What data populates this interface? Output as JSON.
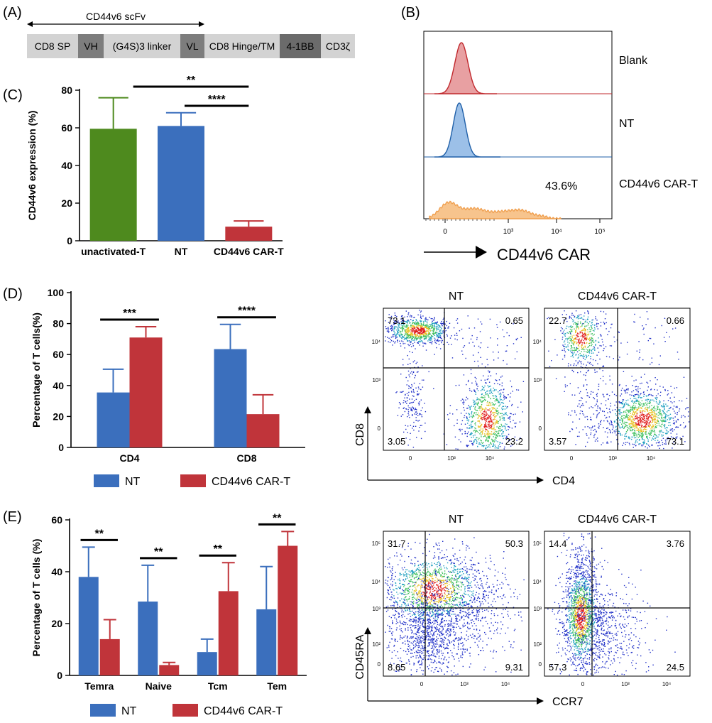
{
  "panels": {
    "A": "(A)",
    "B": "(B)",
    "C": "(C)",
    "D": "(D)",
    "E": "(E)"
  },
  "construct": {
    "scfv_label": "CD44v6 scFv",
    "segments": [
      {
        "label": "CD8 SP",
        "color": "#d3d3d3"
      },
      {
        "label": "VH",
        "color": "#7d7d7d"
      },
      {
        "label": "(G4S)3 linker",
        "color": "#d3d3d3"
      },
      {
        "label": "VL",
        "color": "#7d7d7d"
      },
      {
        "label": "CD8 Hinge/TM",
        "color": "#d3d3d3"
      },
      {
        "label": "4-1BB",
        "color": "#6b6b6b"
      },
      {
        "label": "CD3ζ",
        "color": "#d3d3d3"
      }
    ]
  },
  "histogram": {
    "rows": [
      {
        "label": "Blank",
        "color": "#c0282d",
        "fill": "#e8a0a2",
        "percent": ""
      },
      {
        "label": "NT",
        "color": "#1f5fa8",
        "fill": "#9cc0e8",
        "percent": ""
      },
      {
        "label": "CD44v6 CAR-T",
        "color": "#f0a050",
        "fill": "#f7c48d",
        "percent": "43.6%"
      }
    ],
    "x_ticks": [
      "0",
      "10³",
      "10⁴",
      "10⁵"
    ],
    "axis_label": "CD44v6 CAR"
  },
  "chart_data": [
    {
      "id": "C",
      "type": "bar",
      "ylabel": "CD44v6 expression (%)",
      "ylim": [
        0,
        80
      ],
      "yticks": [
        0,
        20,
        40,
        60,
        80
      ],
      "categories": [
        "unactivated-T",
        "NT",
        "CD44v6 CAR-T"
      ],
      "values": [
        59.5,
        61,
        7.5
      ],
      "errors": [
        16.5,
        7,
        3
      ],
      "colors": [
        "#4e8a1e",
        "#3b6fbd",
        "#c0343a"
      ],
      "significance": [
        {
          "from": 0,
          "to": 2,
          "label": "**"
        },
        {
          "from": 1,
          "to": 2,
          "label": "****"
        }
      ]
    },
    {
      "id": "D",
      "type": "bar",
      "ylabel": "Percentage of T cells(%)",
      "ylim": [
        0,
        100
      ],
      "yticks": [
        0,
        20,
        40,
        60,
        80,
        100
      ],
      "categories": [
        "CD4",
        "CD8"
      ],
      "series": [
        {
          "name": "NT",
          "color": "#3b6fbd",
          "values": [
            35.5,
            63.5
          ],
          "errors": [
            15,
            16
          ]
        },
        {
          "name": "CD44v6 CAR-T",
          "color": "#c0343a",
          "values": [
            71,
            21.5
          ],
          "errors": [
            7,
            12.5
          ]
        }
      ],
      "significance": [
        "***",
        "****"
      ]
    },
    {
      "id": "E",
      "type": "bar",
      "ylabel": "Percentage of T cells (%)",
      "ylim": [
        0,
        60
      ],
      "yticks": [
        0,
        20,
        40,
        60
      ],
      "categories": [
        "Temra",
        "Naive",
        "Tcm",
        "Tem"
      ],
      "series": [
        {
          "name": "NT",
          "color": "#3b6fbd",
          "values": [
            38,
            28.5,
            9,
            25.5
          ],
          "errors": [
            11.5,
            14,
            5,
            16.5
          ]
        },
        {
          "name": "CD44v6 CAR-T",
          "color": "#c0343a",
          "values": [
            14,
            4,
            32.5,
            50
          ],
          "errors": [
            7.5,
            1,
            11,
            5.5
          ]
        }
      ],
      "significance": [
        "**",
        "**",
        "**",
        "**"
      ]
    }
  ],
  "flow_d": {
    "x_label": "CD4",
    "y_label": "CD8",
    "plots": [
      {
        "title": "NT",
        "q_ul": "73.1",
        "q_ur": "0.65",
        "q_ll": "3.05",
        "q_lr": "23.2"
      },
      {
        "title": "CD44v6 CAR-T",
        "q_ul": "22.7",
        "q_ur": "0.66",
        "q_ll": "3.57",
        "q_lr": "73.1"
      }
    ],
    "x_ticks": [
      "0",
      "10³",
      "10⁴"
    ],
    "y_ticks": [
      "10⁴",
      "10³",
      "0"
    ]
  },
  "flow_e": {
    "x_label": "CCR7",
    "y_label": "CD45RA",
    "plots": [
      {
        "title": "NT",
        "q_ul": "31.7",
        "q_ur": "50.3",
        "q_ll": "8.65",
        "q_lr": "9.31"
      },
      {
        "title": "CD44v6 CAR-T",
        "q_ul": "14.4",
        "q_ur": "3.76",
        "q_ll": "57.3",
        "q_lr": "24.5"
      }
    ],
    "x_ticks": [
      "0",
      "10³",
      "10⁴"
    ],
    "y_ticks": [
      "10⁵",
      "10⁴",
      "10³",
      "10²",
      "0"
    ]
  }
}
